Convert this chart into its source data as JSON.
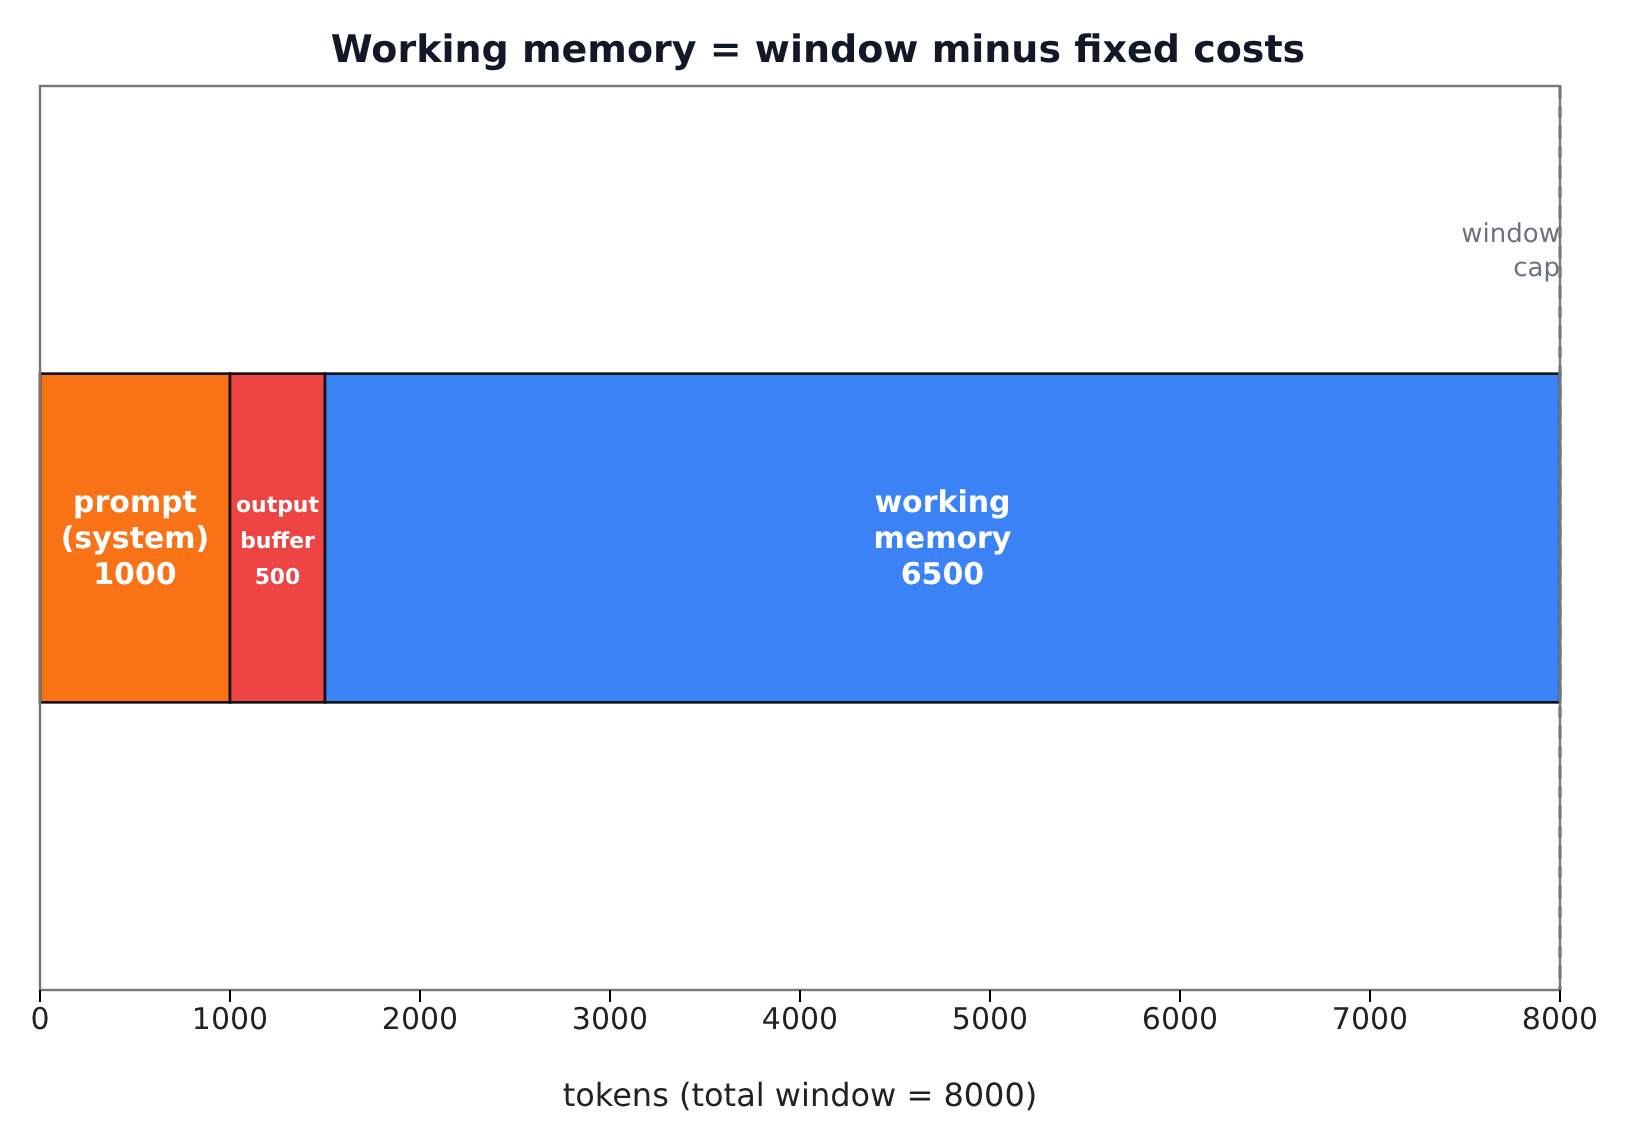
{
  "chart_data": {
    "type": "bar",
    "title": "Working memory = window minus fixed costs",
    "xlabel": "tokens  (total window = 8000)",
    "orientation": "horizontal",
    "stacked": true,
    "categories": [
      null
    ],
    "series": [
      {
        "name": "prompt (system)",
        "color": "#f97316",
        "values": [
          1000
        ]
      },
      {
        "name": "output buffer",
        "color": "#ef4444",
        "values": [
          500
        ]
      },
      {
        "name": "working memory",
        "color": "#3b82f6",
        "values": [
          6500
        ]
      }
    ],
    "data_labels": true,
    "xlim": [
      0,
      8000
    ],
    "xticks": [
      0,
      1000,
      2000,
      3000,
      4000,
      5000,
      6000,
      7000,
      8000
    ],
    "ref_lines": [
      {
        "axis": "x",
        "value": 8000,
        "label": "window cap",
        "color": "#6b7280",
        "line_style": "dashed"
      }
    ]
  }
}
